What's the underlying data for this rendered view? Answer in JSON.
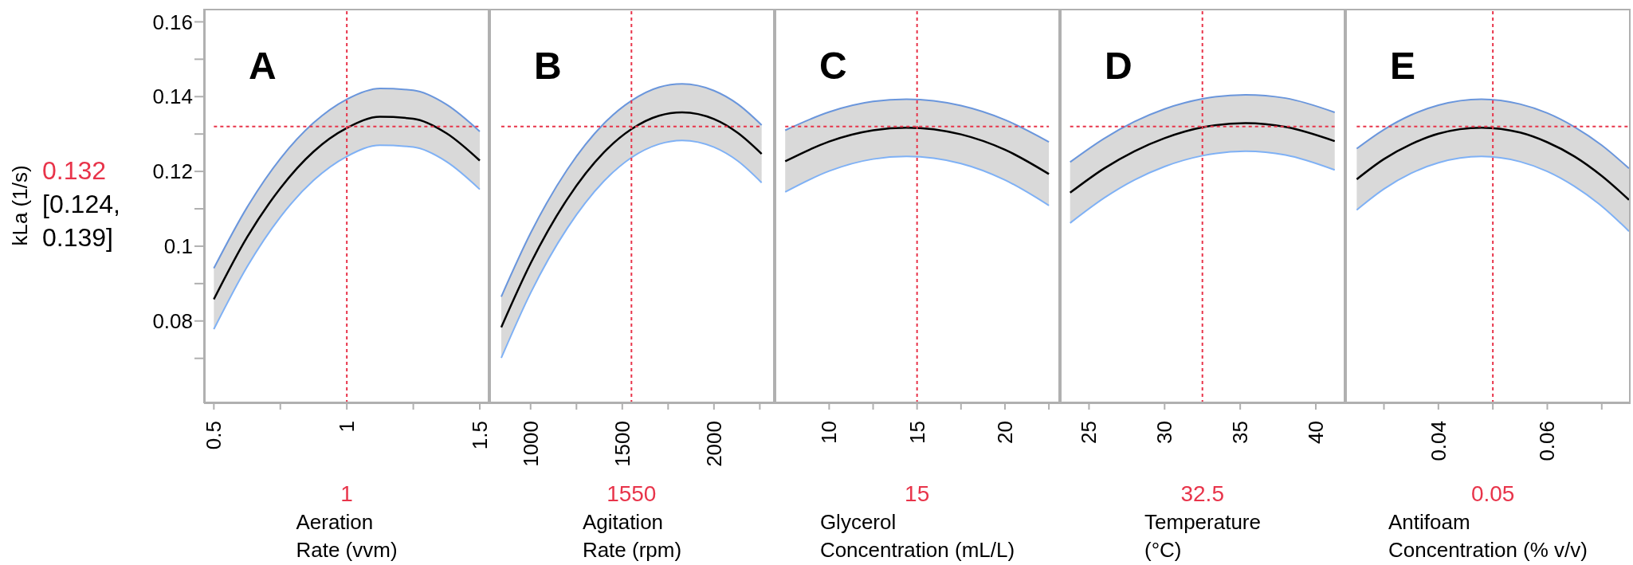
{
  "chart_data": [
    {
      "type": "line",
      "title": "A",
      "xlabel": "Aeration Rate (vvm)",
      "ylabel": "kLa (1/s)",
      "x": [
        0.5,
        0.625,
        0.75,
        0.875,
        1,
        1.125,
        1.25,
        1.375,
        1.5
      ],
      "series": [
        {
          "color": "#000000",
          "values": [
            0.0858,
            0.1024,
            0.1155,
            0.1253,
            0.1316,
            0.1346,
            0.1341,
            0.1302,
            0.1229
          ],
          "lower": [
            0.0778,
            0.0945,
            0.1078,
            0.1176,
            0.124,
            0.127,
            0.1265,
            0.1226,
            0.1152
          ],
          "upper": [
            0.0941,
            0.1104,
            0.1234,
            0.133,
            0.1393,
            0.1422,
            0.1417,
            0.1379,
            0.1307
          ]
        },
        {
          "color": "#6a96dc",
          "values": [
            0.0941,
            0.1104,
            0.1234,
            0.133,
            0.1393,
            0.1422,
            0.1417,
            0.1379,
            0.1307
          ]
        },
        {
          "color": "#7fb1f5",
          "values": [
            0.0778,
            0.0945,
            0.1078,
            0.1176,
            0.124,
            0.127,
            0.1265,
            0.1226,
            0.1152
          ]
        }
      ],
      "xlim": [
        0.463,
        1.536
      ],
      "xticks": [
        0.5,
        {
          "value": 0.75,
          "label": null
        },
        1,
        {
          "value": 1.25,
          "label": null
        },
        1.5
      ],
      "ylim": [
        0.058,
        0.1635
      ],
      "yticks": [
        {
          "value": 0.07,
          "label": null
        },
        0.08,
        {
          "value": 0.09,
          "label": null
        },
        0.1,
        {
          "value": 0.11,
          "label": null
        },
        0.12,
        {
          "value": 0.13,
          "label": null
        },
        0.14,
        {
          "value": 0.15,
          "label": null
        },
        0.16
      ],
      "ref_lines": [
        {
          "axis": "x",
          "value": 1,
          "label": "1",
          "color": "#e8344a",
          "line_style": "dashed"
        },
        {
          "axis": "y",
          "value": 0.132,
          "label": "0.132",
          "color": "#e8344a",
          "line_style": "dashed"
        }
      ],
      "annotations": [
        "[0.124, 0.139]"
      ]
    },
    {
      "type": "line",
      "title": "B",
      "xlabel": "Agitation Rate (rpm)",
      "x": [
        840,
        1000,
        1200,
        1400,
        1550,
        1700,
        1826,
        2000,
        2130,
        2260
      ],
      "series": [
        {
          "color": "#000000",
          "values": [
            0.0783,
            0.0954,
            0.1126,
            0.1251,
            0.1313,
            0.1349,
            0.1358,
            0.134,
            0.1303,
            0.1247
          ],
          "lower": [
            0.0701,
            0.0875,
            0.1048,
            0.1174,
            0.1237,
            0.1273,
            0.1283,
            0.1265,
            0.1228,
            0.117
          ],
          "upper": [
            0.0865,
            0.1035,
            0.1205,
            0.1328,
            0.1389,
            0.1425,
            0.1434,
            0.1416,
            0.138,
            0.1324
          ]
        },
        {
          "color": "#6a96dc",
          "values": [
            0.0865,
            0.1035,
            0.1205,
            0.1328,
            0.1389,
            0.1425,
            0.1434,
            0.1416,
            0.138,
            0.1324
          ]
        },
        {
          "color": "#7fb1f5",
          "values": [
            0.0701,
            0.0875,
            0.1048,
            0.1174,
            0.1237,
            0.1273,
            0.1283,
            0.1265,
            0.1228,
            0.117
          ]
        }
      ],
      "xlim": [
        775,
        2331
      ],
      "xticks": [
        1000,
        {
          "value": 1250,
          "label": null
        },
        1500,
        {
          "value": 1750,
          "label": null
        },
        2000,
        {
          "value": 2250,
          "label": null
        }
      ],
      "ylim": [
        0.058,
        0.1635
      ],
      "tick_labels": "x",
      "ref_lines": [
        {
          "axis": "x",
          "value": 1550,
          "label": "1550",
          "color": "#e8344a",
          "line_style": "dashed"
        },
        {
          "axis": "y",
          "value": 0.132,
          "color": "#e8344a",
          "line_style": "dashed"
        }
      ]
    },
    {
      "type": "line",
      "title": "C",
      "xlabel": "Glycerol Concentration (mL/L)",
      "x": [
        7.5,
        10,
        12.5,
        14.4,
        17.5,
        20,
        22.5
      ],
      "series": [
        {
          "color": "#000000",
          "values": [
            0.1227,
            0.128,
            0.131,
            0.1317,
            0.1299,
            0.1258,
            0.1193
          ],
          "lower": [
            0.1145,
            0.1201,
            0.1233,
            0.124,
            0.1221,
            0.1177,
            0.1109
          ],
          "upper": [
            0.131,
            0.1359,
            0.1387,
            0.1393,
            0.1376,
            0.1338,
            0.1279
          ]
        },
        {
          "color": "#6a96dc",
          "values": [
            0.131,
            0.1359,
            0.1387,
            0.1393,
            0.1376,
            0.1338,
            0.1279
          ]
        },
        {
          "color": "#7fb1f5",
          "values": [
            0.1145,
            0.1201,
            0.1233,
            0.124,
            0.1221,
            0.1177,
            0.1109
          ]
        }
      ],
      "xlim": [
        6.9,
        23.13
      ],
      "xticks": [
        10,
        {
          "value": 12.5,
          "label": null
        },
        15,
        {
          "value": 17.5,
          "label": null
        },
        20,
        {
          "value": 22.5,
          "label": null
        }
      ],
      "ylim": [
        0.058,
        0.1635
      ],
      "tick_labels": "x",
      "ref_lines": [
        {
          "axis": "x",
          "value": 15,
          "label": "15",
          "color": "#e8344a",
          "line_style": "dashed"
        },
        {
          "axis": "y",
          "value": 0.132,
          "color": "#e8344a",
          "line_style": "dashed"
        }
      ]
    },
    {
      "type": "line",
      "title": "D",
      "xlabel": "Temperature (°C)",
      "x": [
        23.75,
        26,
        28,
        30,
        32.5,
        35.35,
        38,
        41.25
      ],
      "series": [
        {
          "color": "#000000",
          "values": [
            0.1143,
            0.1208,
            0.1254,
            0.1289,
            0.1318,
            0.1329,
            0.1319,
            0.1281
          ],
          "lower": [
            0.1062,
            0.1129,
            0.1177,
            0.1213,
            0.1242,
            0.1254,
            0.1244,
            0.1204
          ],
          "upper": [
            0.1225,
            0.1288,
            0.1333,
            0.1367,
            0.1394,
            0.1405,
            0.1396,
            0.1358
          ]
        },
        {
          "color": "#6a96dc",
          "values": [
            0.1225,
            0.1288,
            0.1333,
            0.1367,
            0.1394,
            0.1405,
            0.1396,
            0.1358
          ]
        },
        {
          "color": "#7fb1f5",
          "values": [
            0.1062,
            0.1129,
            0.1177,
            0.1213,
            0.1242,
            0.1254,
            0.1244,
            0.1204
          ]
        }
      ],
      "xlim": [
        23.08,
        41.95
      ],
      "xticks": [
        25,
        30,
        35,
        40
      ],
      "ylim": [
        0.058,
        0.1635
      ],
      "tick_labels": "x",
      "ref_lines": [
        {
          "axis": "x",
          "value": 32.5,
          "label": "32.5",
          "color": "#e8344a",
          "line_style": "dashed"
        },
        {
          "axis": "y",
          "value": 0.132,
          "color": "#e8344a",
          "line_style": "dashed"
        }
      ]
    },
    {
      "type": "line",
      "title": "E",
      "xlabel": "Antifoam Concentration (% v/v)",
      "x": [
        0.025,
        0.03,
        0.035,
        0.04,
        0.0479,
        0.055,
        0.06,
        0.065,
        0.07,
        0.075
      ],
      "series": [
        {
          "color": "#000000",
          "values": [
            0.1179,
            0.1233,
            0.1273,
            0.1301,
            0.1317,
            0.1304,
            0.1278,
            0.124,
            0.1188,
            0.1124
          ],
          "lower": [
            0.1097,
            0.1153,
            0.1195,
            0.1223,
            0.124,
            0.1226,
            0.12,
            0.116,
            0.1107,
            0.104
          ],
          "upper": [
            0.1261,
            0.1312,
            0.1351,
            0.1377,
            0.1393,
            0.138,
            0.1356,
            0.1319,
            0.127,
            0.1208
          ]
        },
        {
          "color": "#6a96dc",
          "values": [
            0.1261,
            0.1312,
            0.1351,
            0.1377,
            0.1393,
            0.138,
            0.1356,
            0.1319,
            0.127,
            0.1208
          ]
        },
        {
          "color": "#7fb1f5",
          "values": [
            0.1097,
            0.1153,
            0.1195,
            0.1223,
            0.124,
            0.1226,
            0.12,
            0.116,
            0.1107,
            0.104
          ]
        }
      ],
      "xlim": [
        0.0229,
        0.0753
      ],
      "xticks": [
        {
          "value": 0.03,
          "label": null
        },
        0.04,
        {
          "value": 0.05,
          "label": null
        },
        0.06,
        {
          "value": 0.07,
          "label": null
        }
      ],
      "ylim": [
        0.058,
        0.1635
      ],
      "tick_labels": "x",
      "ref_lines": [
        {
          "axis": "x",
          "value": 0.05,
          "label": "0.05",
          "color": "#e8344a",
          "line_style": "dashed"
        },
        {
          "axis": "y",
          "value": 0.132,
          "color": "#e8344a",
          "line_style": "dashed"
        }
      ]
    }
  ]
}
